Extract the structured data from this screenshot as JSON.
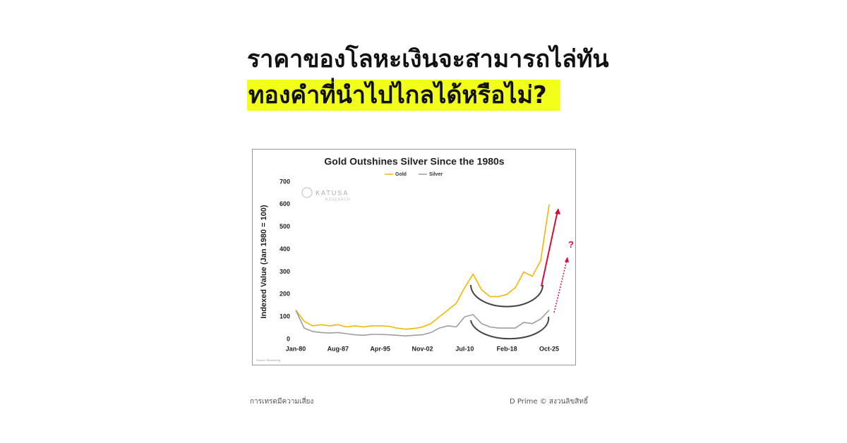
{
  "headline": [
    "ราคาของโลหะเงินจะสามารถไล่ทัน",
    "ทองคำที่นำไปไกลได้หรือไม่?"
  ],
  "footer": {
    "left": "การเทรดมีความเสี่ยง",
    "right": "D Prime © สงวนลิขสิทธิ์"
  },
  "chart_data": {
    "type": "line",
    "title": "Gold Outshines Silver Since the 1980s",
    "y_label": "Indexed Value (Jan 1980 = 100)",
    "watermark": [
      "KATUSA",
      "RESEARCH"
    ],
    "source": "Source: Bloomberg",
    "annotation": "?",
    "categories": [
      "Jan-80",
      null,
      null,
      null,
      null,
      "Aug-87",
      null,
      null,
      null,
      null,
      "Apr-95",
      null,
      null,
      null,
      null,
      "Nov-02",
      null,
      null,
      null,
      null,
      "Jul-10",
      null,
      null,
      null,
      null,
      "Feb-18",
      null,
      null,
      null,
      null,
      "Oct-25"
    ],
    "series": [
      {
        "name": "Gold",
        "color": "#f2b705",
        "values": [
          130,
          80,
          60,
          65,
          60,
          65,
          55,
          60,
          55,
          60,
          60,
          58,
          50,
          45,
          48,
          55,
          70,
          100,
          130,
          160,
          230,
          290,
          220,
          190,
          190,
          200,
          230,
          300,
          280,
          350,
          600
        ]
      },
      {
        "name": "Silver",
        "color": "#9e9e9e",
        "values": [
          130,
          50,
          35,
          30,
          28,
          30,
          25,
          20,
          18,
          22,
          22,
          20,
          18,
          15,
          18,
          20,
          30,
          50,
          60,
          55,
          100,
          110,
          70,
          55,
          50,
          50,
          50,
          75,
          70,
          90,
          130
        ]
      }
    ],
    "ylim": [
      0,
      700
    ],
    "yticks": [
      0,
      100,
      200,
      300,
      400,
      500,
      600,
      700
    ],
    "legend": "top"
  }
}
